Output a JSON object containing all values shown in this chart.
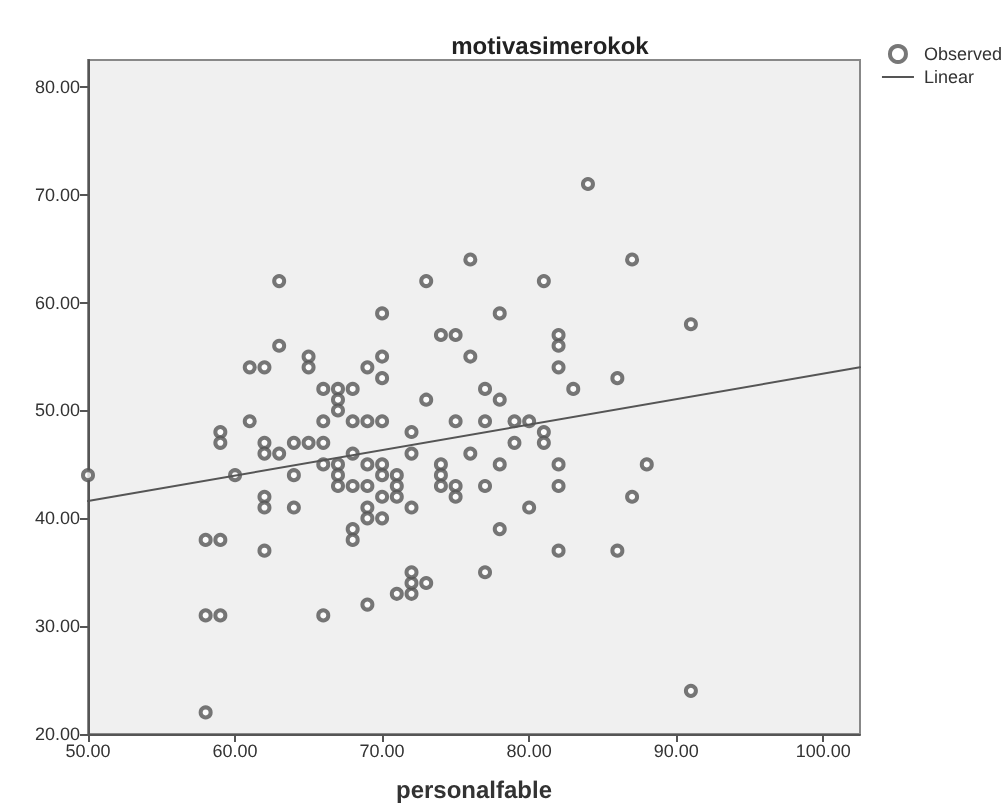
{
  "chart_data": {
    "type": "scatter",
    "title": "motivasimerokok",
    "xlabel": "personalfable",
    "xlim": [
      50,
      102.5
    ],
    "ylim": [
      20,
      82.5
    ],
    "xticks": [
      {
        "value": 50,
        "label": "50.00"
      },
      {
        "value": 60,
        "label": "60.00"
      },
      {
        "value": 70,
        "label": "70.00"
      },
      {
        "value": 80,
        "label": "80.00"
      },
      {
        "value": 90,
        "label": "90.00"
      },
      {
        "value": 100,
        "label": "100.00"
      }
    ],
    "yticks": [
      {
        "value": 20,
        "label": "20.00"
      },
      {
        "value": 30,
        "label": "30.00"
      },
      {
        "value": 40,
        "label": "40.00"
      },
      {
        "value": 50,
        "label": "50.00"
      },
      {
        "value": 60,
        "label": "60.00"
      },
      {
        "value": 70,
        "label": "70.00"
      },
      {
        "value": 80,
        "label": "80.00"
      }
    ],
    "grid": false,
    "legend": "top right",
    "series": [
      {
        "name": "Observed",
        "marker": "circle",
        "color": "#555555",
        "x": [
          84,
          63,
          73,
          76,
          81,
          70,
          78,
          74,
          75,
          82,
          82,
          63,
          65,
          65,
          61,
          62,
          70,
          70,
          69,
          76,
          82,
          66,
          67,
          68,
          67,
          67,
          77,
          78,
          73,
          59,
          59,
          61,
          66,
          68,
          69,
          70,
          72,
          75,
          77,
          79,
          80,
          62,
          62,
          63,
          64,
          65,
          66,
          68,
          72,
          76,
          79,
          81,
          81,
          83,
          86,
          87,
          91,
          82,
          82,
          82,
          50,
          60,
          64,
          64,
          66,
          67,
          67,
          67,
          68,
          69,
          69,
          70,
          70,
          70,
          69,
          69,
          70,
          68,
          68,
          71,
          71,
          71,
          72,
          74,
          74,
          74,
          75,
          75,
          77,
          77,
          78,
          78,
          80,
          62,
          62,
          62,
          58,
          59,
          58,
          59,
          58,
          66,
          69,
          71,
          72,
          72,
          72,
          73,
          88,
          87,
          86,
          91
        ],
        "values": [
          71,
          62,
          62,
          64,
          62,
          59,
          59,
          57,
          57,
          57,
          56,
          56,
          55,
          54,
          54,
          54,
          55,
          53,
          54,
          55,
          54,
          52,
          52,
          52,
          51,
          50,
          52,
          51,
          51,
          48,
          47,
          49,
          49,
          49,
          49,
          49,
          48,
          49,
          49,
          49,
          49,
          47,
          46,
          46,
          47,
          47,
          47,
          46,
          46,
          46,
          47,
          48,
          47,
          52,
          53,
          64,
          58,
          45,
          43,
          37,
          44,
          44,
          44,
          41,
          45,
          45,
          44,
          43,
          43,
          45,
          43,
          45,
          44,
          42,
          41,
          40,
          40,
          39,
          38,
          44,
          43,
          42,
          41,
          45,
          44,
          43,
          43,
          42,
          43,
          35,
          45,
          39,
          41,
          42,
          41,
          37,
          38,
          38,
          31,
          31,
          22,
          31,
          32,
          33,
          33,
          34,
          35,
          34,
          45,
          42,
          37,
          24
        ]
      },
      {
        "name": "Linear",
        "type": "line",
        "marker": "none",
        "line_style": "solid",
        "color": "#555555",
        "x": [
          50,
          102.5
        ],
        "values": [
          41.6,
          54.0
        ]
      }
    ]
  }
}
